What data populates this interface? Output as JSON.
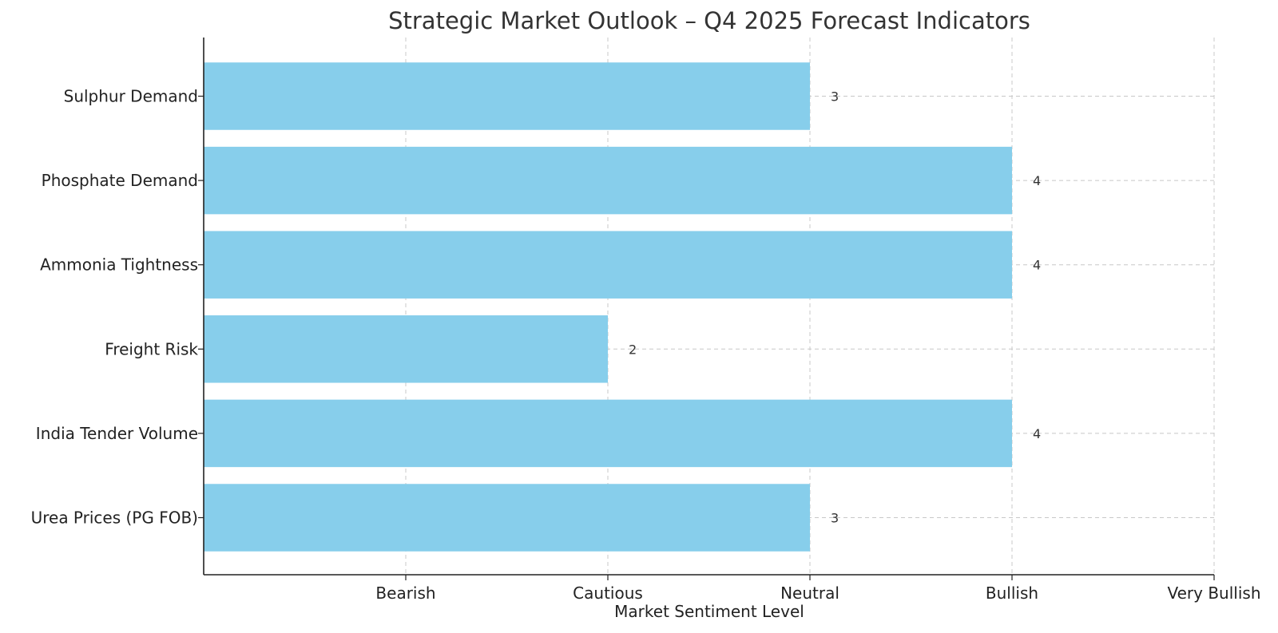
{
  "chart_data": {
    "type": "bar",
    "orientation": "horizontal",
    "title": "Strategic Market Outlook – Q4 2025 Forecast Indicators",
    "xlabel": "Market Sentiment Level",
    "ylabel": "",
    "categories": [
      "Urea Prices (PG FOB)",
      "India Tender Volume",
      "Freight Risk",
      "Ammonia Tightness",
      "Phosphate Demand",
      "Sulphur Demand"
    ],
    "values": [
      3,
      4,
      2,
      4,
      4,
      3
    ],
    "value_labels": [
      "3",
      "4",
      "2",
      "4",
      "4",
      "3"
    ],
    "xlim": [
      0,
      5
    ],
    "xticks": [
      1,
      2,
      3,
      4,
      5
    ],
    "xtick_labels": [
      "Bearish",
      "Cautious",
      "Neutral",
      "Bullish",
      "Very Bullish"
    ],
    "grid": true,
    "bar_color": "#87ceeb"
  }
}
